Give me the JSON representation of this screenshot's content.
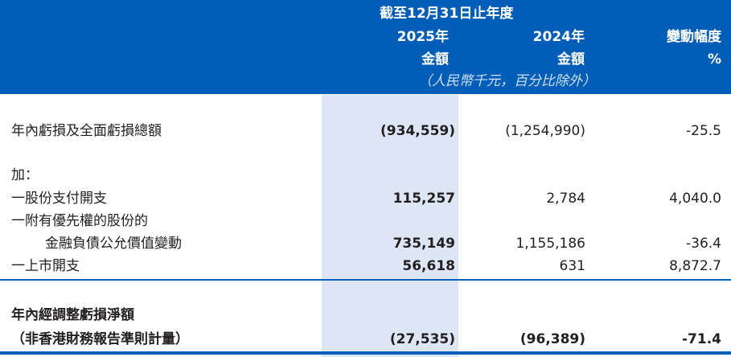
{
  "header": {
    "period": "截至12月31日止年度",
    "col2025": "2025年",
    "col2024": "2024年",
    "colChange": "變動幅度",
    "amount2025": "金額",
    "amount2024": "金額",
    "pct": "%",
    "unit": "（人民幣千元，百分比除外）"
  },
  "colors": {
    "header_bg": "#005eb8",
    "highlight": "#dce6f5"
  },
  "rows": [
    {
      "label": "年內虧損及全面虧損總額",
      "v2025": "(934,559)",
      "v2024": "(1,254,990)",
      "chg": "-25.5"
    },
    {
      "label": "加："
    },
    {
      "label": "一股份支付開支",
      "v2025": "115,257",
      "v2024": "2,784",
      "chg": "4,040.0"
    },
    {
      "label": "一附有優先權的股份的"
    },
    {
      "label": "金融負債公允價值變動",
      "v2025": "735,149",
      "v2024": "1,155,186",
      "chg": "-36.4"
    },
    {
      "label": "一上市開支",
      "v2025": "56,618",
      "v2024": "631",
      "chg": "8,872.7"
    },
    {
      "label": "年內經調整虧損淨額"
    },
    {
      "label": "（非香港財務報告準則計量）",
      "v2025": "(27,535)",
      "v2024": "(96,389)",
      "chg": "-71.4"
    }
  ]
}
